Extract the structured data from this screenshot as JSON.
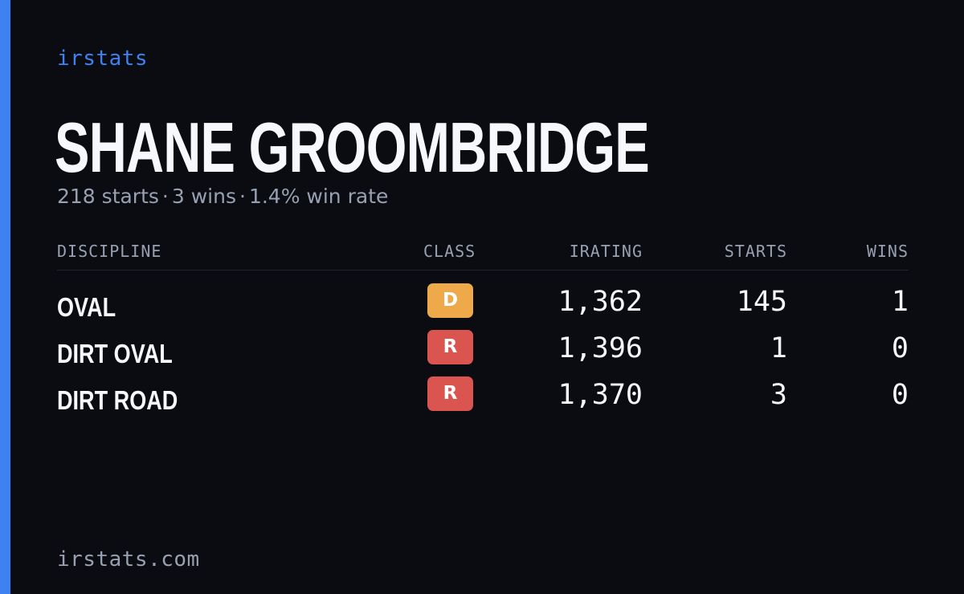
{
  "brand": "irstats",
  "driver": {
    "name": "SHANE GROOMBRIDGE",
    "starts_text": "218 starts",
    "wins_text": "3 wins",
    "winrate_text": "1.4% win rate",
    "separator": "·"
  },
  "table": {
    "headers": {
      "discipline": "DISCIPLINE",
      "class": "CLASS",
      "irating": "IRATING",
      "starts": "STARTS",
      "wins": "WINS"
    },
    "rows": [
      {
        "discipline": "OVAL",
        "class": "D",
        "class_color": "#eeaa4a",
        "irating": "1,362",
        "starts": "145",
        "wins": "1"
      },
      {
        "discipline": "DIRT OVAL",
        "class": "R",
        "class_color": "#db5550",
        "irating": "1,396",
        "starts": "1",
        "wins": "0"
      },
      {
        "discipline": "DIRT ROAD",
        "class": "R",
        "class_color": "#db5550",
        "irating": "1,370",
        "starts": "3",
        "wins": "0"
      }
    ]
  },
  "footer": "irstats.com",
  "colors": {
    "accent": "#3d82f0",
    "background": "#0a0c12",
    "muted_text": "#98a1b1"
  }
}
